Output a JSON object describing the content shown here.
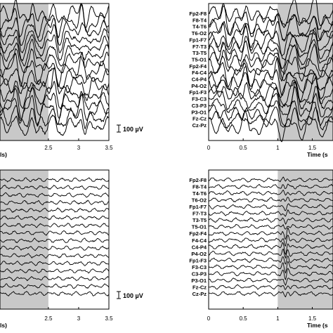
{
  "chart_data": [
    {
      "type": "line",
      "panel": "top-left",
      "xticks": [
        "2.5",
        "3",
        "3.5"
      ],
      "xlabel_fragment": "ls)",
      "xlim": [
        1.7,
        3.5
      ],
      "shaded_region": [
        1.7,
        2.5
      ],
      "channels": 15,
      "trace_style": "high-amplitude synchronized spike-wave discharges",
      "scale_bar": "100 µV"
    },
    {
      "type": "line",
      "panel": "top-right",
      "xticks": [
        "0",
        "0.5",
        "1",
        "1.5"
      ],
      "xlabel": "Time (s",
      "xlim": [
        0,
        1.8
      ],
      "shaded_region": [
        1.0,
        1.8
      ],
      "channels": [
        "Fp2-F8",
        "F8-T4",
        "T4-T6",
        "T6-O2",
        "Fp1-F7",
        "F7-T3",
        "T3-T5",
        "T5-O1",
        "Fp2-F4",
        "F4-C4",
        "C4-P4",
        "P4-O2",
        "Fp1-F3",
        "F3-C3",
        "C3-P3",
        "P3-O1",
        "Fz-Cz",
        "Cz-Pz"
      ],
      "trace_style": "high-amplitude synchronized spike-wave discharges"
    },
    {
      "type": "line",
      "panel": "bottom-left",
      "xticks": [
        "2.5",
        "3",
        "3.5"
      ],
      "xlabel_fragment": "ls)",
      "xlim": [
        1.7,
        3.5
      ],
      "shaded_region": [
        1.7,
        2.5
      ],
      "channels": 16,
      "trace_style": "low-amplitude background activity",
      "scale_bar": "100 µV"
    },
    {
      "type": "line",
      "panel": "bottom-right",
      "xticks": [
        "0",
        "0.5",
        "1",
        "1.5"
      ],
      "xlabel": "Time (s",
      "xlim": [
        0,
        1.8
      ],
      "shaded_region": [
        1.0,
        1.8
      ],
      "channels": [
        "Fp2-F8",
        "F8-T4",
        "T4-T6",
        "T6-O2",
        "Fp1-F7",
        "F7-T3",
        "T3-T5",
        "T5-O1",
        "Fp2-F4",
        "F4-C4",
        "C4-P4",
        "P4-O2",
        "Fp1-F3",
        "F3-C3",
        "C3-P3",
        "P3-O1",
        "Fz-Cz",
        "Cz-Pz"
      ],
      "trace_style": "low-amplitude background with focal transient at onset of shaded region"
    }
  ],
  "colors": {
    "shade": "#c8c8c8",
    "trace": "#000000",
    "axis": "#000000"
  }
}
